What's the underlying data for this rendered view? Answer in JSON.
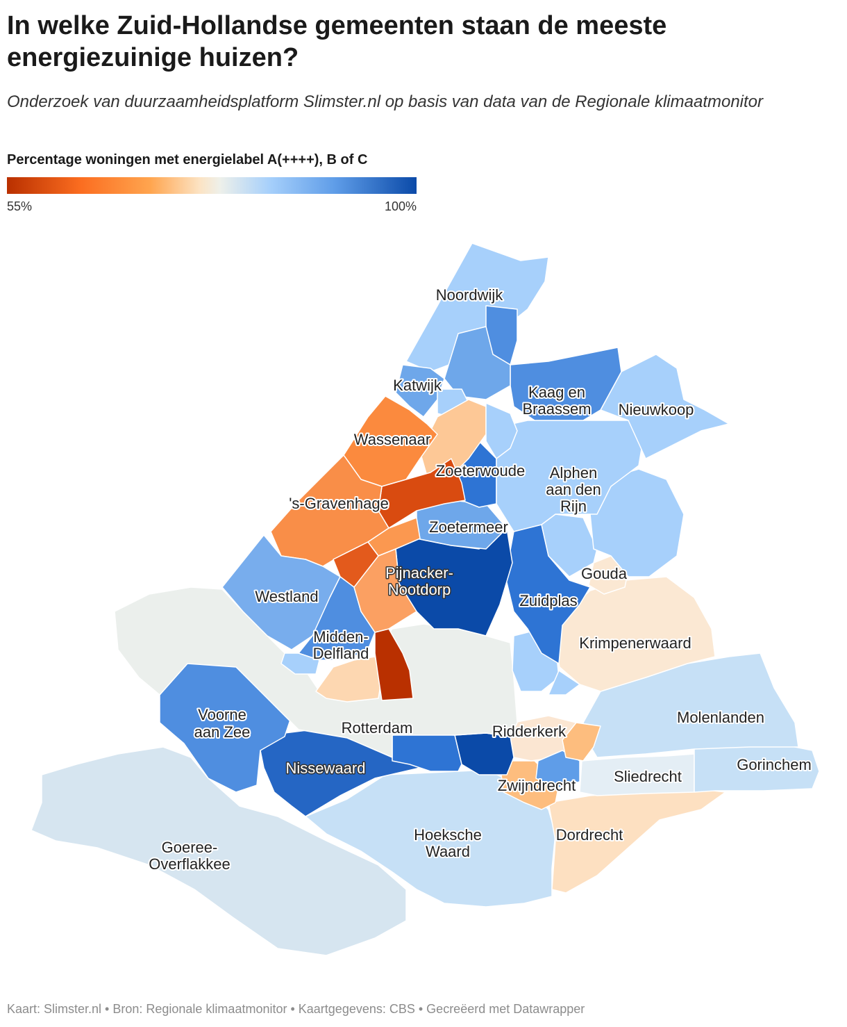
{
  "title": "In welke Zuid-Hollandse gemeenten staan de meeste energiezuinige huizen?",
  "subtitle": "Onderzoek van duurzaamheidsplatform Slimster.nl op basis van data van de Regionale klimaatmonitor",
  "legend": {
    "title": "Percentage woningen met energielabel A(++++), B of C",
    "min_label": "55%",
    "max_label": "100%",
    "min_value": 55,
    "max_value": 100,
    "colors": [
      "#b93000",
      "#fb6d20",
      "#ffa54f",
      "#fce3c3",
      "#eef0ea",
      "#a7d0fb",
      "#5f9de8",
      "#0b4aa8"
    ]
  },
  "map": {
    "labels": {
      "noordwijk": "Noordwijk",
      "katwijk": "Katwijk",
      "kaag": [
        "Kaag en",
        "Braassem"
      ],
      "nieuwkoop": "Nieuwkoop",
      "wassenaar": "Wassenaar",
      "zoeterwoude": "Zoeterwoude",
      "alphen": [
        "Alphen",
        "aan den",
        "Rijn"
      ],
      "gravenhage": "'s-Gravenhage",
      "zoetermeer": "Zoetermeer",
      "pijnacker": [
        "Pijnacker-",
        "Nootdorp"
      ],
      "gouda": "Gouda",
      "westland": "Westland",
      "zuidplas": "Zuidplas",
      "middendelfland": [
        "Midden-",
        "Delfland"
      ],
      "krimpenerwaard": "Krimpenerwaard",
      "voorne": [
        "Voorne",
        "aan Zee"
      ],
      "rotterdam": "Rotterdam",
      "ridderkerk": "Ridderkerk",
      "molenlanden": "Molenlanden",
      "nissewaard": "Nissewaard",
      "sliedrecht": "Sliedrecht",
      "gorinchem": "Gorinchem",
      "zwijndrecht": "Zwijndrecht",
      "hoeksche": [
        "Hoeksche",
        "Waard"
      ],
      "dordrecht": "Dordrecht",
      "goeree": [
        "Goeree-",
        "Overflakkee"
      ]
    }
  },
  "footer": "Kaart: Slimster.nl • Bron: Regionale klimaatmonitor • Kaartgegevens: CBS • Gecreëerd met Datawrapper"
}
